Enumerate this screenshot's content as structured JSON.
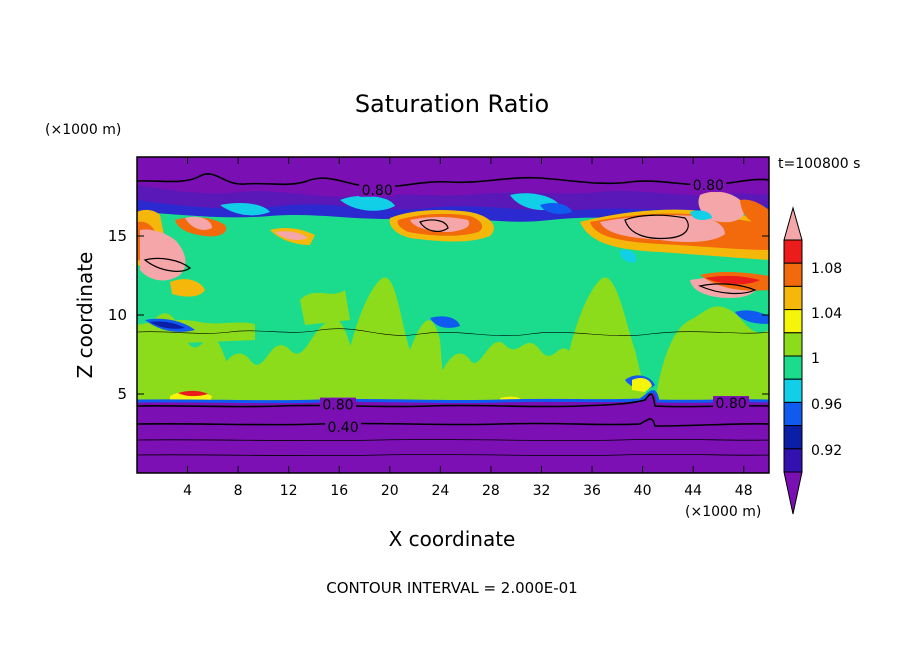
{
  "chart_data": {
    "type": "heatmap",
    "title": "Saturation Ratio",
    "xlabel": "X coordinate",
    "ylabel": "Z coordinate",
    "x_units": "(×1000 m)",
    "y_units": "(×1000 m)",
    "time_label": "t=100800 s",
    "footer": "CONTOUR INTERVAL = 2.000E-01",
    "xlim": [
      0,
      50
    ],
    "ylim": [
      0,
      20
    ],
    "x_ticks": [
      4,
      8,
      12,
      16,
      20,
      24,
      28,
      32,
      36,
      40,
      44,
      48
    ],
    "y_ticks": [
      5,
      10,
      15
    ],
    "colorbar": {
      "levels": [
        0.92,
        0.96,
        1,
        1.04,
        1.08
      ],
      "level_labels": [
        "0.92",
        "0.96",
        "1",
        "1.04",
        "1.08"
      ],
      "colors": [
        "#7a0fb3",
        "#3310b0",
        "#0a1fa6",
        "#0f5bf0",
        "#12cfe8",
        "#1adc8c",
        "#8cdc1c",
        "#f5f50c",
        "#f5b80a",
        "#f26a0c",
        "#ec1c1c",
        "#f5a6a8"
      ]
    },
    "contour_labels": [
      {
        "text": "0.80",
        "x": 15.9,
        "y": 4.2
      },
      {
        "text": "0.40",
        "x": 16.3,
        "y": 2.8
      },
      {
        "text": "0.80",
        "x": 47.0,
        "y": 4.3
      },
      {
        "text": "0.80",
        "x": 19.0,
        "y": 17.8
      },
      {
        "text": "0.80",
        "x": 45.2,
        "y": 18.1
      }
    ]
  }
}
